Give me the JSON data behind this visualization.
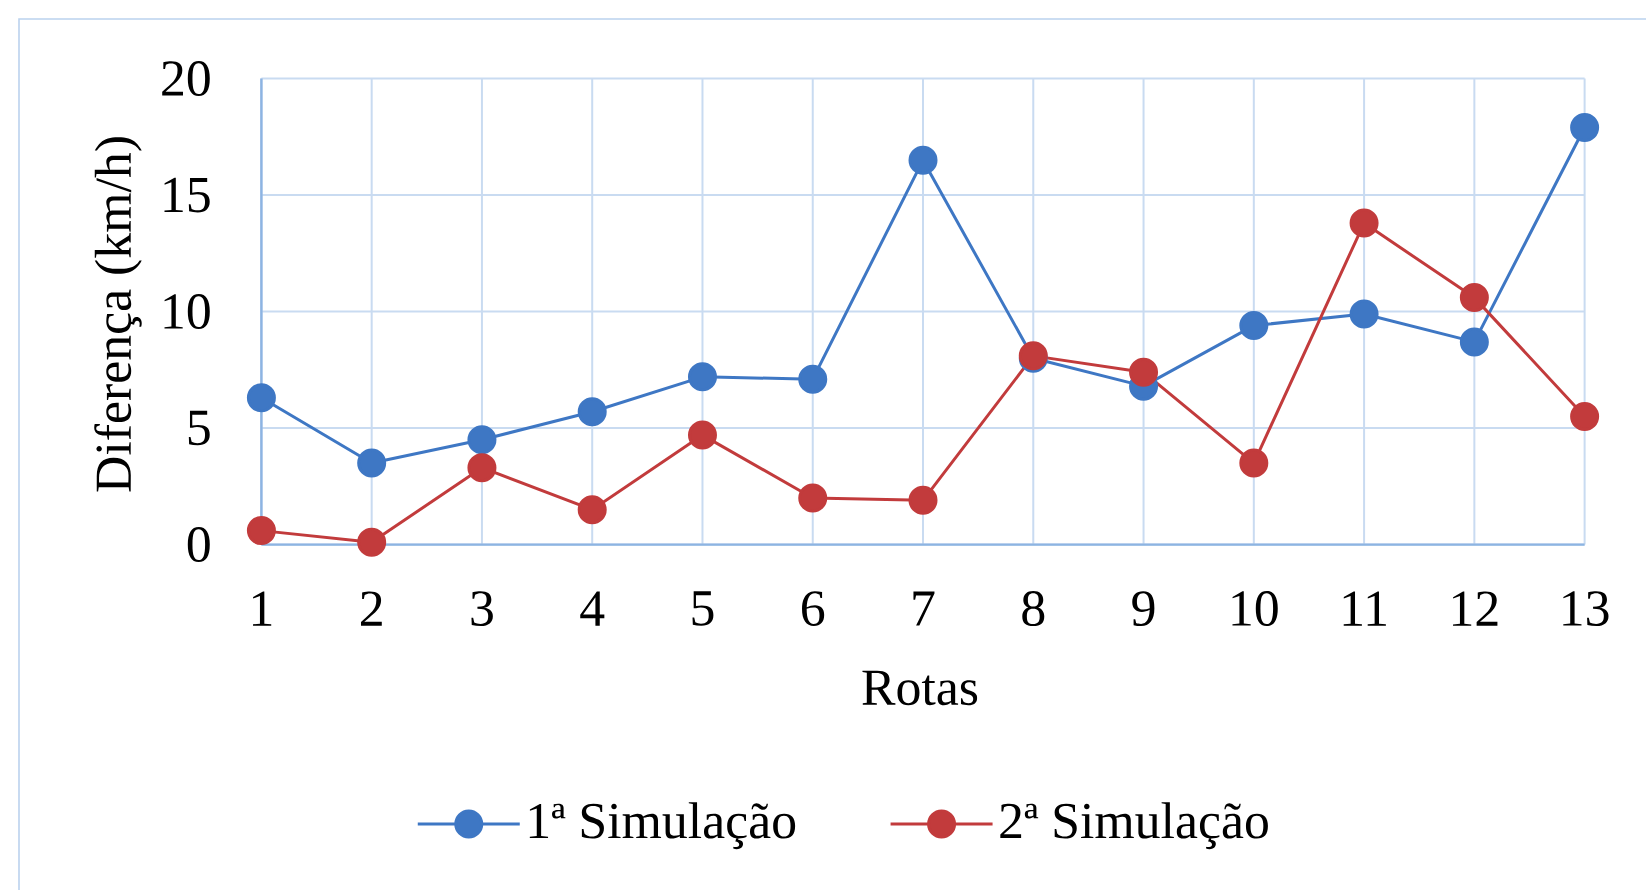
{
  "chart_data": {
    "type": "line",
    "xlabel": "Rotas",
    "ylabel": "Diferença (km/h)",
    "categories": [
      "1",
      "2",
      "3",
      "4",
      "5",
      "6",
      "7",
      "8",
      "9",
      "10",
      "11",
      "12",
      "13"
    ],
    "series": [
      {
        "name": "1ª Simulação",
        "color": "#3e77c4",
        "values": [
          6.3,
          3.5,
          4.5,
          5.7,
          7.2,
          7.1,
          16.5,
          8.0,
          6.8,
          9.4,
          9.9,
          8.7,
          17.9
        ]
      },
      {
        "name": "2ª Simulação",
        "color": "#c23b3c",
        "values": [
          0.6,
          0.1,
          3.3,
          1.5,
          4.7,
          2.0,
          1.9,
          8.1,
          7.4,
          3.5,
          13.8,
          10.6,
          5.5
        ]
      }
    ],
    "ylim": [
      0,
      20
    ],
    "yticks": [
      0,
      5,
      10,
      15,
      20
    ],
    "grid": true,
    "legend": "bottom",
    "marker": "circle"
  }
}
